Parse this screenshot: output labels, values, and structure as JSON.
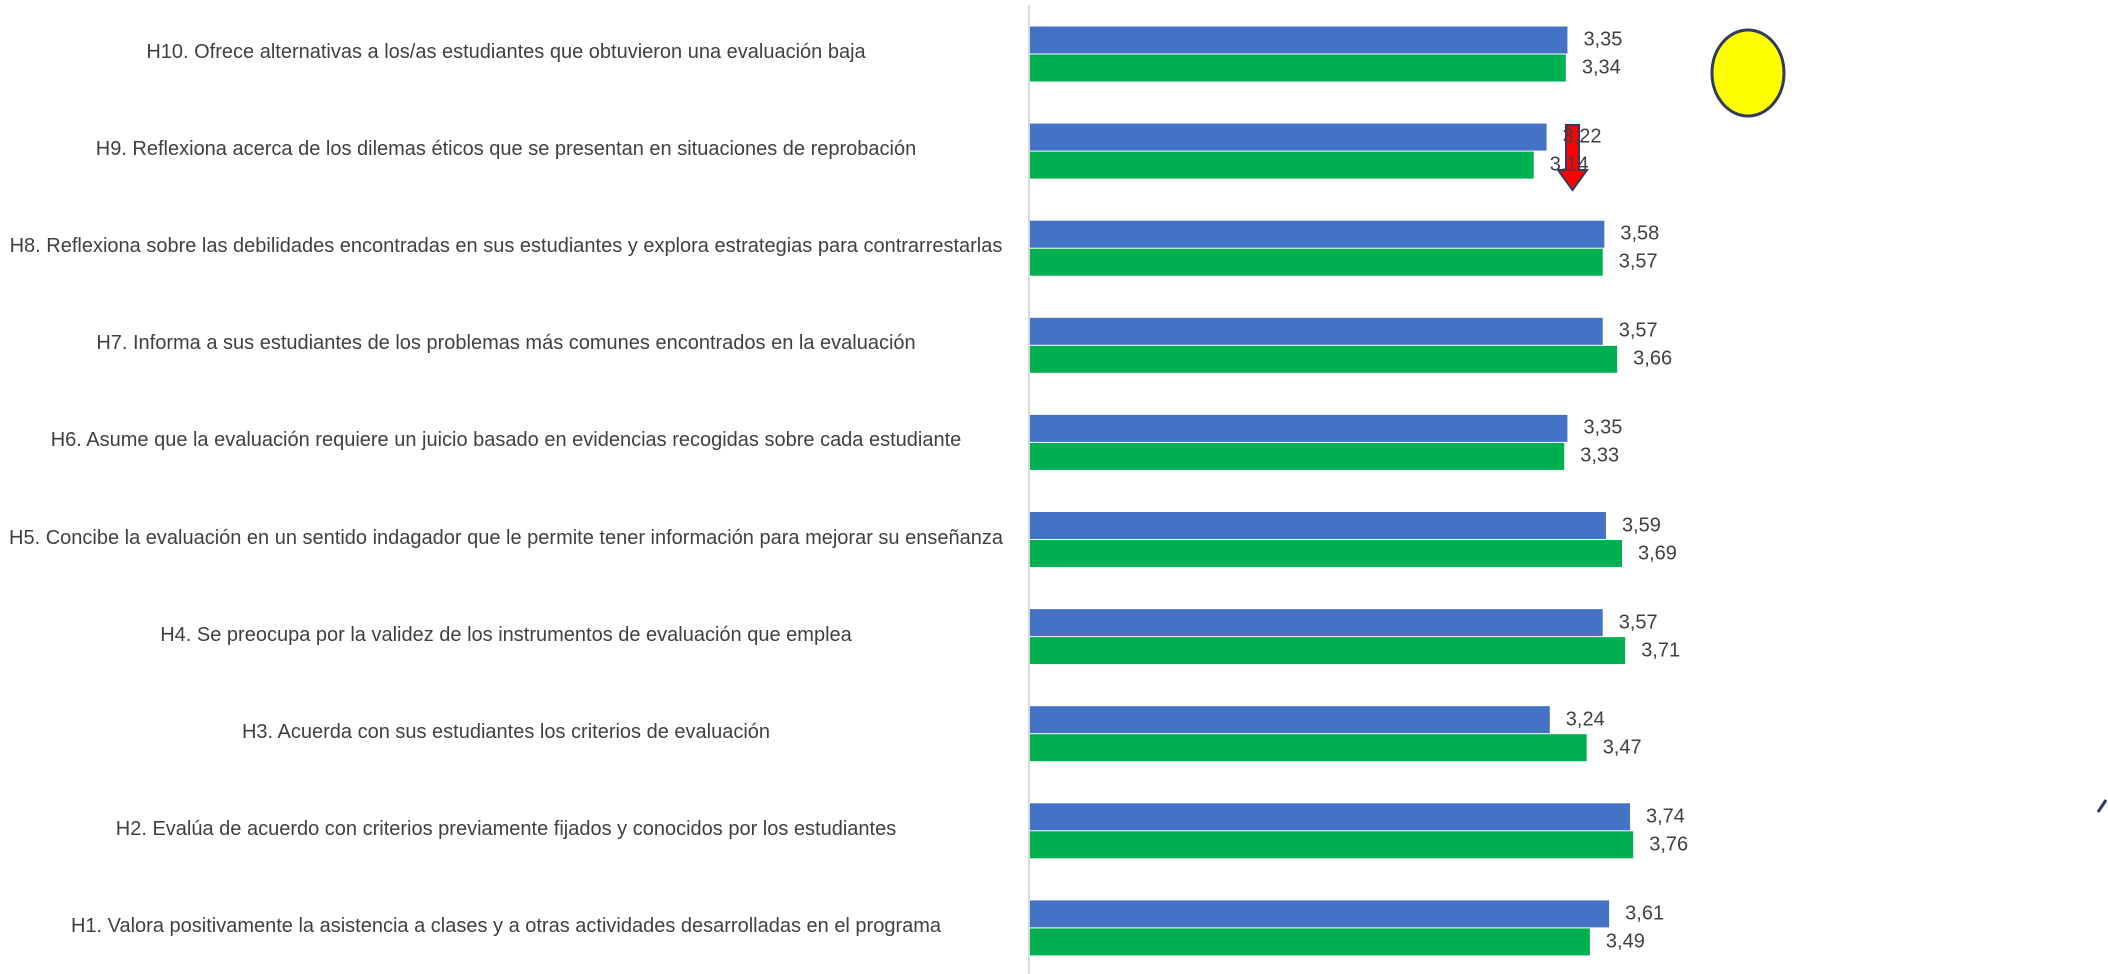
{
  "chart_data": {
    "type": "bar",
    "orientation": "horizontal",
    "categories": [
      "H10. Ofrece alternativas a los/as estudiantes que obtuvieron una evaluación baja",
      "H9. Reflexiona acerca de los dilemas éticos que se presentan en situaciones de reprobación",
      "H8. Reflexiona sobre las debilidades encontradas en sus estudiantes y explora estrategias para contrarrestarlas",
      "H7. Informa a sus estudiantes de los problemas más comunes encontrados en la evaluación",
      "H6. Asume que la evaluación requiere un juicio basado en evidencias recogidas sobre cada estudiante",
      "H5. Concibe la evaluación en un sentido indagador que le permite tener información para mejorar su enseñanza",
      "H4. Se preocupa por la validez de los instrumentos de evaluación que emplea",
      "H3. Acuerda con sus estudiantes los criterios de evaluación",
      "H2. Evalúa de acuerdo con criterios previamente fijados y conocidos por los estudiantes",
      "H1. Valora positivamente la asistencia a clases y a otras actividades desarrolladas en el programa"
    ],
    "series": [
      {
        "color": "#4472C4",
        "values": [
          3.35,
          3.22,
          3.58,
          3.57,
          3.35,
          3.59,
          3.57,
          3.24,
          3.74,
          3.61
        ],
        "labels": [
          "3,35",
          "3,22",
          "3,58",
          "3,57",
          "3,35",
          "3,59",
          "3,57",
          "3,24",
          "3,74",
          "3,61"
        ]
      },
      {
        "color": "#00B050",
        "values": [
          3.34,
          3.14,
          3.57,
          3.66,
          3.33,
          3.69,
          3.71,
          3.47,
          3.76,
          3.49
        ],
        "labels": [
          "3,34",
          "3,14",
          "3,57",
          "3,66",
          "3,33",
          "3,69",
          "3,71",
          "3,47",
          "3,76",
          "3,49"
        ]
      }
    ],
    "annotations": [
      {
        "shape": "yellow-circle",
        "near_category": 0,
        "color": "#FFFF00"
      },
      {
        "shape": "red-down-arrow",
        "near_category": 1,
        "color": "#FF0000"
      }
    ],
    "grid": false,
    "legend": "none"
  }
}
